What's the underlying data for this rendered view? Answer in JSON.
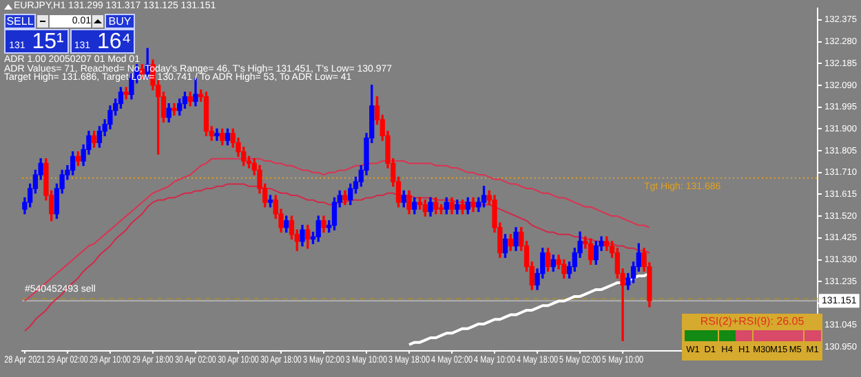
{
  "chart_data": {
    "type": "candlestick",
    "categories": [
      "28 Apr 2021",
      null,
      null,
      null,
      null,
      null,
      null,
      null,
      "29 Apr 02:00",
      null,
      null,
      null,
      null,
      null,
      null,
      null,
      "29 Apr 10:00",
      null,
      null,
      null,
      null,
      null,
      null,
      null,
      "29 Apr 18:00",
      null,
      null,
      null,
      null,
      null,
      null,
      null,
      "30 Apr 02:00",
      null,
      null,
      null,
      null,
      null,
      null,
      null,
      "30 Apr 10:00",
      null,
      null,
      null,
      null,
      null,
      null,
      null,
      "30 Apr 18:00",
      null,
      null,
      null,
      null,
      null,
      null,
      null,
      "3 May 02:00",
      null,
      null,
      null,
      null,
      null,
      null,
      null,
      "3 May 10:00",
      null,
      null,
      null,
      null,
      null,
      null,
      null,
      "3 May 18:00",
      null,
      null,
      null,
      null,
      null,
      null,
      null,
      "4 May 02:00",
      null,
      null,
      null,
      null,
      null,
      null,
      null,
      "4 May 10:00",
      null,
      null,
      null,
      null,
      null,
      null,
      null,
      "4 May 18:00",
      null,
      null,
      null,
      null,
      null,
      null,
      null,
      "5 May 02:00",
      null,
      null,
      null,
      null,
      null,
      null,
      null,
      "5 May 10:00",
      null,
      null,
      null,
      null,
      null,
      null,
      null,
      null,
      null,
      null,
      null,
      null,
      null,
      null,
      null,
      null,
      null,
      null,
      null,
      null,
      null,
      null,
      null,
      null,
      null,
      null,
      null,
      null,
      null,
      null,
      null,
      null,
      null,
      null,
      null,
      null
    ],
    "ohlc": [
      [
        131.55,
        131.6,
        131.53,
        131.58
      ],
      [
        131.58,
        131.66,
        131.56,
        131.64
      ],
      [
        131.64,
        131.72,
        131.62,
        131.7
      ],
      [
        131.7,
        131.77,
        131.68,
        131.75
      ],
      [
        131.75,
        131.77,
        131.59,
        131.61
      ],
      [
        131.61,
        131.63,
        131.5,
        131.53
      ],
      [
        131.53,
        131.66,
        131.51,
        131.64
      ],
      [
        131.64,
        131.72,
        131.62,
        131.7
      ],
      [
        131.7,
        131.74,
        131.68,
        131.72
      ],
      [
        131.72,
        131.8,
        131.7,
        131.78
      ],
      [
        131.78,
        131.8,
        131.74,
        131.76
      ],
      [
        131.76,
        131.83,
        131.74,
        131.81
      ],
      [
        131.81,
        131.89,
        131.79,
        131.87
      ],
      [
        131.87,
        131.89,
        131.82,
        131.84
      ],
      [
        131.84,
        131.91,
        131.82,
        131.89
      ],
      [
        131.89,
        131.94,
        131.87,
        131.92
      ],
      [
        131.92,
        132.0,
        131.9,
        131.98
      ],
      [
        131.98,
        132.03,
        131.96,
        132.01
      ],
      [
        132.01,
        132.08,
        131.99,
        132.06
      ],
      [
        132.06,
        132.08,
        132.03,
        132.05
      ],
      [
        132.05,
        132.14,
        132.03,
        132.12
      ],
      [
        132.12,
        132.18,
        132.1,
        132.16
      ],
      [
        132.16,
        132.18,
        132.12,
        132.14
      ],
      [
        132.14,
        132.25,
        132.12,
        132.18
      ],
      [
        132.18,
        132.2,
        132.07,
        132.09
      ],
      [
        132.09,
        132.11,
        131.79,
        132.04
      ],
      [
        132.04,
        132.06,
        131.93,
        131.95
      ],
      [
        131.95,
        132.01,
        131.93,
        131.99
      ],
      [
        131.99,
        132.01,
        131.96,
        131.98
      ],
      [
        131.98,
        132.03,
        131.96,
        132.01
      ],
      [
        132.01,
        132.06,
        131.99,
        132.04
      ],
      [
        132.04,
        132.06,
        132.0,
        132.02
      ],
      [
        132.02,
        132.12,
        132.0,
        132.05
      ],
      [
        132.05,
        132.07,
        132.02,
        132.04
      ],
      [
        132.04,
        132.06,
        131.87,
        131.89
      ],
      [
        131.89,
        131.91,
        131.85,
        131.87
      ],
      [
        131.87,
        131.9,
        131.85,
        131.88
      ],
      [
        131.88,
        131.9,
        131.83,
        131.85
      ],
      [
        131.85,
        131.9,
        131.83,
        131.88
      ],
      [
        131.88,
        131.9,
        131.82,
        131.84
      ],
      [
        131.84,
        131.86,
        131.78,
        131.8
      ],
      [
        131.8,
        131.82,
        131.74,
        131.76
      ],
      [
        131.76,
        131.78,
        131.73,
        131.75
      ],
      [
        131.75,
        131.77,
        131.7,
        131.72
      ],
      [
        131.72,
        131.74,
        131.62,
        131.64
      ],
      [
        131.64,
        131.66,
        131.56,
        131.58
      ],
      [
        131.58,
        131.61,
        131.56,
        131.59
      ],
      [
        131.59,
        131.61,
        131.51,
        131.53
      ],
      [
        131.53,
        131.55,
        131.45,
        131.47
      ],
      [
        131.47,
        131.52,
        131.45,
        131.5
      ],
      [
        131.5,
        131.52,
        131.42,
        131.44
      ],
      [
        131.44,
        131.46,
        131.37,
        131.41
      ],
      [
        131.41,
        131.48,
        131.39,
        131.46
      ],
      [
        131.46,
        131.48,
        131.38,
        131.42
      ],
      [
        131.42,
        131.45,
        131.4,
        131.43
      ],
      [
        131.43,
        131.52,
        131.41,
        131.5
      ],
      [
        131.5,
        131.52,
        131.45,
        131.47
      ],
      [
        131.47,
        131.5,
        131.45,
        131.48
      ],
      [
        131.48,
        131.6,
        131.46,
        131.58
      ],
      [
        131.58,
        131.63,
        131.56,
        131.61
      ],
      [
        131.61,
        131.63,
        131.57,
        131.59
      ],
      [
        131.59,
        131.66,
        131.57,
        131.64
      ],
      [
        131.64,
        131.69,
        131.62,
        131.67
      ],
      [
        131.67,
        131.74,
        131.65,
        131.72
      ],
      [
        131.72,
        131.88,
        131.7,
        131.86
      ],
      [
        131.86,
        132.09,
        131.84,
        132.0
      ],
      [
        132.0,
        132.04,
        131.92,
        131.94
      ],
      [
        131.94,
        131.96,
        131.85,
        131.87
      ],
      [
        131.87,
        131.89,
        131.73,
        131.75
      ],
      [
        131.75,
        131.77,
        131.65,
        131.67
      ],
      [
        131.67,
        131.69,
        131.56,
        131.58
      ],
      [
        131.58,
        131.63,
        131.56,
        131.61
      ],
      [
        131.61,
        131.63,
        131.53,
        131.55
      ],
      [
        131.55,
        131.6,
        131.53,
        131.58
      ],
      [
        131.58,
        131.6,
        131.55,
        131.57
      ],
      [
        131.57,
        131.59,
        131.52,
        131.54
      ],
      [
        131.54,
        131.6,
        131.52,
        131.58
      ],
      [
        131.58,
        131.6,
        131.53,
        131.55
      ],
      [
        131.55,
        131.57,
        131.53,
        131.55
      ],
      [
        131.55,
        131.6,
        131.53,
        131.58
      ],
      [
        131.58,
        131.6,
        131.53,
        131.55
      ],
      [
        131.55,
        131.59,
        131.53,
        131.57
      ],
      [
        131.57,
        131.59,
        131.53,
        131.55
      ],
      [
        131.55,
        131.6,
        131.53,
        131.58
      ],
      [
        131.58,
        131.6,
        131.54,
        131.56
      ],
      [
        131.56,
        131.6,
        131.54,
        131.58
      ],
      [
        131.58,
        131.65,
        131.56,
        131.61
      ],
      [
        131.61,
        131.63,
        131.57,
        131.59
      ],
      [
        131.59,
        131.61,
        131.45,
        131.47
      ],
      [
        131.47,
        131.49,
        131.34,
        131.36
      ],
      [
        131.36,
        131.44,
        131.34,
        131.42
      ],
      [
        131.42,
        131.44,
        131.37,
        131.39
      ],
      [
        131.39,
        131.47,
        131.37,
        131.45
      ],
      [
        131.45,
        131.47,
        131.37,
        131.39
      ],
      [
        131.39,
        131.41,
        131.28,
        131.3
      ],
      [
        131.3,
        131.32,
        131.2,
        131.22
      ],
      [
        131.22,
        131.29,
        131.2,
        131.27
      ],
      [
        131.27,
        131.38,
        131.25,
        131.36
      ],
      [
        131.36,
        131.38,
        131.28,
        131.3
      ],
      [
        131.3,
        131.35,
        131.28,
        131.33
      ],
      [
        131.33,
        131.35,
        131.29,
        131.31
      ],
      [
        131.31,
        131.33,
        131.25,
        131.27
      ],
      [
        131.27,
        131.32,
        131.25,
        131.3
      ],
      [
        131.3,
        131.38,
        131.28,
        131.36
      ],
      [
        131.36,
        131.451,
        131.34,
        131.41
      ],
      [
        131.41,
        131.43,
        131.38,
        131.4
      ],
      [
        131.4,
        131.42,
        131.31,
        131.33
      ],
      [
        131.33,
        131.41,
        131.31,
        131.39
      ],
      [
        131.39,
        131.43,
        131.37,
        131.41
      ],
      [
        131.41,
        131.43,
        131.37,
        131.39
      ],
      [
        131.39,
        131.41,
        131.34,
        131.36
      ],
      [
        131.36,
        131.38,
        131.25,
        131.27
      ],
      [
        131.27,
        131.29,
        130.977,
        131.22
      ],
      [
        131.22,
        131.27,
        131.2,
        131.25
      ],
      [
        131.25,
        131.32,
        131.23,
        131.3
      ],
      [
        131.3,
        131.4,
        131.28,
        131.36
      ],
      [
        131.36,
        131.38,
        131.28,
        131.3
      ],
      [
        131.299,
        131.317,
        131.125,
        131.151
      ],
      null,
      null,
      null,
      null,
      null,
      null,
      null,
      null,
      null,
      null,
      null,
      null,
      null,
      null,
      null,
      null,
      null,
      null,
      null,
      null,
      null,
      null,
      null,
      null,
      null,
      null,
      null,
      null,
      null,
      null,
      null
    ],
    "colors": [
      "#0000ff",
      "#0000ff",
      "#0000ff",
      "#0000ff",
      "#ff0000",
      "#ff0000",
      "#0000ff",
      "#0000ff",
      "#0000ff",
      "#0000ff",
      "#ff0000",
      "#0000ff",
      "#0000ff",
      "#ff0000",
      "#0000ff",
      "#0000ff",
      "#0000ff",
      "#0000ff",
      "#0000ff",
      "#ff0000",
      "#0000ff",
      "#0000ff",
      "#ff0000",
      "#0000ff",
      "#ff0000",
      "#ff0000",
      "#ff0000",
      "#0000ff",
      "#ff0000",
      "#0000ff",
      "#0000ff",
      "#ff0000",
      "#0000ff",
      "#ff0000",
      "#ff0000",
      "#ff0000",
      "#0000ff",
      "#ff0000",
      "#0000ff",
      "#ff0000",
      "#ff0000",
      "#ff0000",
      "#ff0000",
      "#ff0000",
      "#ff0000",
      "#ff0000",
      "#0000ff",
      "#ff0000",
      "#ff0000",
      "#0000ff",
      "#ff0000",
      "#ff0000",
      "#0000ff",
      "#ff0000",
      "#0000ff",
      "#0000ff",
      "#ff0000",
      "#0000ff",
      "#0000ff",
      "#0000ff",
      "#ff0000",
      "#0000ff",
      "#0000ff",
      "#0000ff",
      "#0000ff",
      "#0000ff",
      "#ff0000",
      "#ff0000",
      "#ff0000",
      "#ff0000",
      "#ff0000",
      "#0000ff",
      "#ff0000",
      "#0000ff",
      "#ff0000",
      "#ff0000",
      "#0000ff",
      "#ff0000",
      "#ff0000",
      "#0000ff",
      "#ff0000",
      "#0000ff",
      "#ff0000",
      "#0000ff",
      "#ff0000",
      "#0000ff",
      "#0000ff",
      "#ff0000",
      "#ff0000",
      "#ff0000",
      "#0000ff",
      "#ff0000",
      "#0000ff",
      "#ff0000",
      "#ff0000",
      "#ff0000",
      "#0000ff",
      "#0000ff",
      "#ff0000",
      "#0000ff",
      "#ff0000",
      "#ff0000",
      "#0000ff",
      "#0000ff",
      "#0000ff",
      "#ff0000",
      "#ff0000",
      "#0000ff",
      "#0000ff",
      "#ff0000",
      "#ff0000",
      "#ff0000",
      "#ff0000",
      "#0000ff",
      "#0000ff",
      "#0000ff",
      "#ff0000",
      "#ff0000",
      null,
      null,
      null,
      null,
      null,
      null,
      null,
      null,
      null,
      null,
      null,
      null,
      null,
      null,
      null,
      null,
      null,
      null,
      null,
      null,
      null,
      null,
      null,
      null,
      null,
      null,
      null,
      null,
      null,
      null,
      null
    ],
    "series": [
      {
        "type": "line",
        "color": "#dc3250",
        "values": [
          131.15,
          131.17,
          131.19,
          131.21,
          131.23,
          131.25,
          131.27,
          131.29,
          131.31,
          131.33,
          131.35,
          131.37,
          131.39,
          131.4,
          131.42,
          131.44,
          131.46,
          131.48,
          131.5,
          131.52,
          131.54,
          131.56,
          131.58,
          131.6,
          131.62,
          131.63,
          131.64,
          131.65,
          131.67,
          131.68,
          131.69,
          131.7,
          131.72,
          131.74,
          131.75,
          131.77,
          131.77,
          131.77,
          131.77,
          131.77,
          131.77,
          131.77,
          131.77,
          131.77,
          131.77,
          131.76,
          131.76,
          131.75,
          131.75,
          131.74,
          131.74,
          131.73,
          131.72,
          131.72,
          131.71,
          131.71,
          131.7,
          131.71,
          131.71,
          131.72,
          131.72,
          131.73,
          131.74,
          131.74,
          131.75,
          131.75,
          131.75,
          131.76,
          131.76,
          131.76,
          131.76,
          131.76,
          131.75,
          131.75,
          131.75,
          131.75,
          131.75,
          131.74,
          131.74,
          131.74,
          131.73,
          131.73,
          131.72,
          131.71,
          131.71,
          131.7,
          131.7,
          131.69,
          131.68,
          131.68,
          131.67,
          131.66,
          131.66,
          131.65,
          131.64,
          131.64,
          131.63,
          131.62,
          131.62,
          131.61,
          131.6,
          131.6,
          131.59,
          131.58,
          131.57,
          131.56,
          131.56,
          131.55,
          131.54,
          131.53,
          131.52,
          131.52,
          131.51,
          131.5,
          131.49,
          131.48,
          131.48,
          131.47,
          null,
          null,
          null,
          null,
          null,
          null,
          null,
          null,
          null,
          null,
          null,
          null,
          null,
          null,
          null,
          null,
          null,
          null,
          null,
          null,
          null,
          null,
          null,
          null,
          null,
          null,
          null,
          null,
          null,
          null,
          null
        ]
      },
      {
        "type": "line",
        "color": "#d22848",
        "values": [
          131.02,
          131.04,
          131.07,
          131.09,
          131.11,
          131.14,
          131.16,
          131.18,
          131.21,
          131.23,
          131.25,
          131.28,
          131.3,
          131.32,
          131.35,
          131.37,
          131.39,
          131.42,
          131.44,
          131.46,
          131.49,
          131.51,
          131.53,
          131.56,
          131.58,
          131.59,
          131.59,
          131.6,
          131.6,
          131.61,
          131.62,
          131.62,
          131.63,
          131.63,
          131.64,
          131.64,
          131.65,
          131.65,
          131.66,
          131.66,
          131.66,
          131.66,
          131.65,
          131.65,
          131.65,
          131.64,
          131.64,
          131.63,
          131.62,
          131.62,
          131.61,
          131.61,
          131.6,
          131.59,
          131.59,
          131.58,
          131.58,
          131.57,
          131.57,
          131.58,
          131.58,
          131.59,
          131.59,
          131.59,
          131.6,
          131.6,
          131.61,
          131.61,
          131.62,
          131.62,
          131.61,
          131.61,
          131.61,
          131.6,
          131.6,
          131.6,
          131.6,
          131.59,
          131.59,
          131.59,
          131.59,
          131.58,
          131.58,
          131.58,
          131.58,
          131.57,
          131.57,
          131.57,
          131.56,
          131.55,
          131.54,
          131.53,
          131.52,
          131.51,
          131.5,
          131.48,
          131.47,
          131.46,
          131.45,
          131.45,
          131.44,
          131.44,
          131.44,
          131.43,
          131.43,
          131.42,
          131.42,
          131.41,
          131.41,
          131.4,
          131.4,
          131.39,
          131.39,
          131.38,
          131.38,
          131.37,
          131.37,
          131.36,
          null,
          null,
          null,
          null,
          null,
          null,
          null,
          null,
          null,
          null,
          null,
          null,
          null,
          null,
          null,
          null,
          null,
          null,
          null,
          null,
          null,
          null,
          null,
          null,
          null,
          null,
          null,
          null,
          null,
          null,
          null
        ]
      },
      {
        "type": "line",
        "color": "#ffffff",
        "values": [
          null,
          null,
          null,
          null,
          null,
          null,
          null,
          null,
          null,
          null,
          null,
          null,
          null,
          null,
          null,
          null,
          null,
          null,
          null,
          null,
          null,
          null,
          null,
          null,
          null,
          null,
          null,
          null,
          null,
          null,
          null,
          null,
          null,
          null,
          null,
          null,
          null,
          null,
          null,
          null,
          null,
          null,
          null,
          null,
          null,
          null,
          null,
          null,
          null,
          null,
          null,
          null,
          null,
          null,
          null,
          null,
          null,
          null,
          null,
          null,
          null,
          null,
          null,
          null,
          null,
          null,
          null,
          null,
          null,
          null,
          null,
          null,
          130.96,
          130.97,
          130.97,
          130.98,
          130.99,
          130.99,
          131.0,
          131.01,
          131.01,
          131.02,
          131.03,
          131.03,
          131.04,
          131.05,
          131.05,
          131.06,
          131.07,
          131.07,
          131.08,
          131.09,
          131.09,
          131.1,
          131.11,
          131.11,
          131.12,
          131.13,
          131.13,
          131.14,
          131.15,
          131.15,
          131.16,
          131.17,
          131.17,
          131.18,
          131.19,
          131.2,
          131.2,
          131.21,
          131.22,
          131.23,
          131.23,
          131.24,
          131.25,
          131.26,
          131.26,
          131.27,
          null,
          null,
          null,
          null,
          null,
          null,
          null,
          null,
          null,
          null,
          null,
          null,
          null,
          null,
          null,
          null,
          null,
          null,
          null,
          null,
          null,
          null,
          null,
          null,
          null,
          null,
          null,
          null,
          null,
          null,
          null
        ]
      }
    ],
    "ylim": [
      130.933,
      132.426
    ],
    "yticks": [
      132.375,
      {
        "value": 132.28,
        "label": "132.280"
      },
      132.185,
      {
        "value": 132.09,
        "label": "132.090"
      },
      131.995,
      {
        "value": 131.9,
        "label": "131.900"
      },
      131.805,
      {
        "value": 131.71,
        "label": "131.710"
      },
      131.615,
      {
        "value": 131.52,
        "label": "131.520"
      },
      131.425,
      {
        "value": 131.33,
        "label": "131.330"
      },
      131.235,
      {
        "value": 131.14,
        "label": null
      },
      131.045,
      {
        "value": 130.95,
        "label": "130.950"
      }
    ],
    "ref_lines": [
      {
        "axis": "y",
        "value": 131.151,
        "label": "131.151",
        "color": "#b0b0b0",
        "line_style": "solid"
      },
      {
        "axis": "y",
        "value": 131.16,
        "label": "#540452493 sell",
        "color": "#a08a3c",
        "line_style": "dashed"
      },
      {
        "axis": "y",
        "value": 131.686,
        "label": "Tgt High: 131.686",
        "color": "#e0a020",
        "line_style": "dotted"
      }
    ],
    "annotations": [
      "EURJPY,H1  131.299 131.317 131.125 131.151",
      "ADR 1.00 20050207 01 Mod 01",
      "ADR Values= 71, Reached= No, Today's Range= 46, T's High= 131.451, T's Low= 130.977",
      "Target High= 131.686, Target Low= 130.741 / To ADR High= 53, To ADR Low= 41",
      "SELL",
      "0.01",
      "BUY",
      "131 15¹",
      "131 16⁴",
      "RSI(2)+RSI(9): 26.05",
      "W1",
      "D1",
      "H4",
      "H1",
      "M30",
      "M15",
      "M5",
      "M1"
    ],
    "grid": false,
    "legend": false
  }
}
